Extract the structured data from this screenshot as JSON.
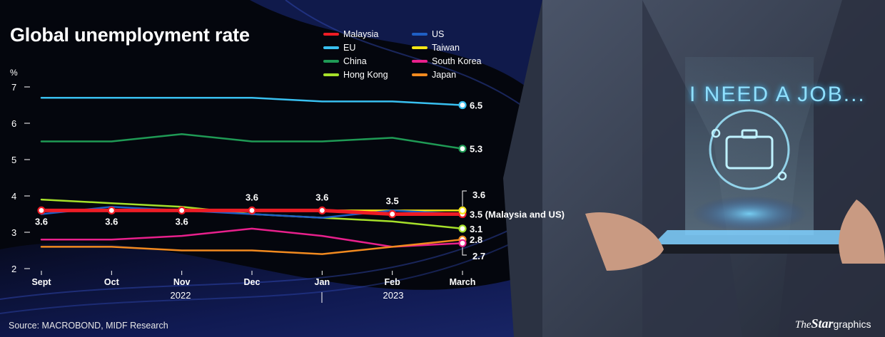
{
  "chart_data": {
    "type": "line",
    "title": "Global unemployment rate",
    "ylabel": "%",
    "ylim": [
      2,
      7
    ],
    "yticks": [
      2,
      3,
      4,
      5,
      6,
      7
    ],
    "categories": [
      "Sept",
      "Oct",
      "Nov",
      "Dec",
      "Jan",
      "Feb",
      "March"
    ],
    "year_labels": [
      "2022",
      "2023"
    ],
    "grid": false,
    "legend_position": "top-right",
    "series": [
      {
        "name": "Malaysia",
        "color": "#ee1c25",
        "values": [
          3.6,
          3.6,
          3.6,
          3.6,
          3.6,
          3.5,
          3.5
        ],
        "point_labels": [
          "3.6",
          "3.6",
          "3.6",
          "3.6",
          "3.6",
          "3.5",
          "3.5 (Malaysia and US)"
        ]
      },
      {
        "name": "US",
        "color": "#1f5fc4",
        "values": [
          3.5,
          3.7,
          3.6,
          3.5,
          3.4,
          3.6,
          3.5
        ]
      },
      {
        "name": "EU",
        "color": "#39c0f0",
        "values": [
          6.7,
          6.7,
          6.7,
          6.7,
          6.6,
          6.6,
          6.5
        ],
        "end_label": "6.5"
      },
      {
        "name": "Taiwan",
        "color": "#f5e616",
        "values": [
          3.6,
          3.6,
          3.6,
          3.6,
          3.6,
          3.6,
          3.6
        ],
        "end_label": "3.6"
      },
      {
        "name": "China",
        "color": "#1f9a55",
        "values": [
          5.5,
          5.5,
          5.7,
          5.5,
          5.5,
          5.6,
          5.3
        ],
        "end_label": "5.3"
      },
      {
        "name": "South Korea",
        "color": "#e8208c",
        "values": [
          2.8,
          2.8,
          2.9,
          3.1,
          2.9,
          2.6,
          2.7
        ],
        "end_label": "2.7"
      },
      {
        "name": "Hong Kong",
        "color": "#a6e02a",
        "values": [
          3.9,
          3.8,
          3.7,
          3.5,
          3.4,
          3.3,
          3.1
        ],
        "end_label": "3.1"
      },
      {
        "name": "Japan",
        "color": "#f28a1f",
        "values": [
          2.6,
          2.6,
          2.5,
          2.5,
          2.4,
          2.6,
          2.8
        ],
        "end_label": "2.8"
      }
    ],
    "source": "Source: MACROBOND, MIDF Research"
  },
  "brand": {
    "the": "The",
    "star": "Star",
    "graphics": "graphics"
  },
  "illustration": {
    "sign_text": "I NEED A JOB..."
  }
}
